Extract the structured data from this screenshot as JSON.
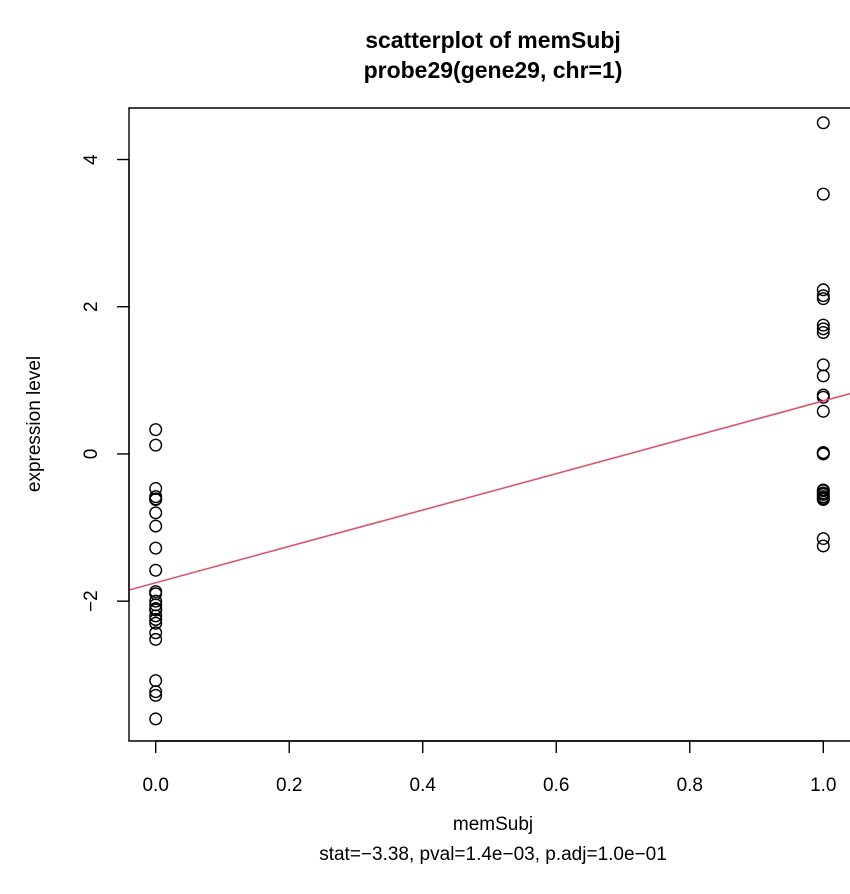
{
  "chart_data": {
    "type": "scatter",
    "title": "scatterplot of memSubj",
    "subtitle": "probe29(gene29, chr=1)",
    "xlabel": "memSubj",
    "ylabel": "expression level",
    "footnote": "stat=−3.38, pval=1.4e−03, p.adj=1.0e−01",
    "xlim": [
      -0.04,
      1.04
    ],
    "ylim": [
      -3.9,
      4.7
    ],
    "x_ticks": [
      {
        "value": 0.0,
        "label": "0.0"
      },
      {
        "value": 0.2,
        "label": "0.2"
      },
      {
        "value": 0.4,
        "label": "0.4"
      },
      {
        "value": 0.6,
        "label": "0.6"
      },
      {
        "value": 0.8,
        "label": "0.8"
      },
      {
        "value": 1.0,
        "label": "1.0"
      }
    ],
    "y_ticks": [
      {
        "value": -2,
        "label": "−2"
      },
      {
        "value": 0,
        "label": "0"
      },
      {
        "value": 2,
        "label": "2"
      },
      {
        "value": 4,
        "label": "4"
      }
    ],
    "grid": false,
    "legend": "none",
    "point_color": "#000000",
    "line_color": "#DF536B",
    "series": [
      {
        "x": [
          0,
          0,
          0,
          0,
          0,
          0,
          0,
          0,
          0,
          0,
          0,
          0,
          0,
          0,
          0,
          0,
          0,
          0,
          0,
          0,
          0,
          0,
          0,
          0,
          0
        ],
        "y": [
          0.33,
          0.12,
          -0.47,
          -0.58,
          -0.61,
          -0.8,
          -0.98,
          -1.28,
          -1.58,
          -1.87,
          -1.9,
          -2.05,
          -2.1,
          -2.12,
          -2.25,
          -2.3,
          -2.43,
          -2.52,
          -3.08,
          -3.23,
          -3.28,
          -3.6,
          -2.0,
          -0.62,
          -2.2
        ]
      },
      {
        "x": [
          1,
          1,
          1,
          1,
          1,
          1,
          1,
          1,
          1,
          1,
          1,
          1,
          1,
          1,
          1,
          1,
          1,
          1,
          1,
          1,
          1,
          1,
          1,
          1,
          1
        ],
        "y": [
          4.5,
          3.53,
          2.23,
          2.11,
          1.75,
          1.65,
          1.21,
          1.06,
          0.77,
          0.58,
          0.02,
          0.0,
          -0.49,
          -0.53,
          -0.58,
          -0.62,
          -1.15,
          -1.25,
          -0.55,
          0.01,
          -0.6,
          1.7,
          -0.5,
          2.15,
          0.8
        ]
      }
    ],
    "regression_line": {
      "intercept": -1.75,
      "slope": 2.47
    }
  }
}
